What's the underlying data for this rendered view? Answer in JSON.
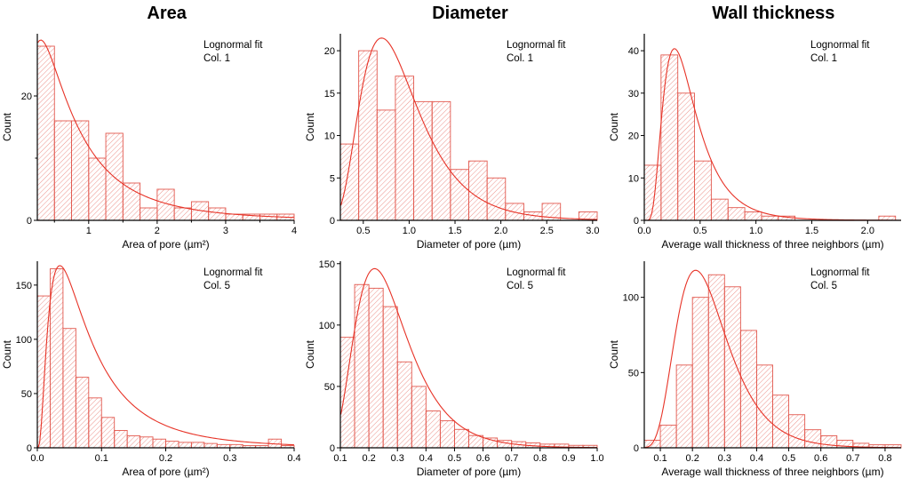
{
  "column_titles": [
    "Area",
    "Diameter",
    "Wall thickness"
  ],
  "colors": {
    "bar": "#e2584e",
    "hatch": "#e2584e",
    "curve": "#e73327",
    "axis": "#000000"
  },
  "chart_data": [
    {
      "type": "bar",
      "name": "area-col1",
      "legend": [
        "Lognormal fit",
        "Col. 1"
      ],
      "xlabel": "Area of pore (µm²)",
      "ylabel": "Count",
      "bins": {
        "start": 0.25,
        "width": 0.25
      },
      "values": [
        28,
        16,
        16,
        10,
        14,
        6,
        2,
        5,
        2,
        3,
        2,
        1,
        1,
        1,
        1
      ],
      "xlim": [
        0.25,
        4.0
      ],
      "ylim": [
        0,
        30
      ],
      "xticks": {
        "values": [
          1,
          2,
          3,
          4
        ],
        "labels": [
          "1",
          "2",
          "3",
          "4"
        ]
      },
      "yticks": {
        "values": [
          0,
          20
        ],
        "labels": [
          "0",
          "20"
        ]
      },
      "xminor": [
        0.5,
        1.5,
        2.5,
        3.5
      ],
      "yminor": [
        10
      ],
      "fit": {
        "mode": 0.3,
        "sigma": 0.9,
        "peak": 29
      }
    },
    {
      "type": "bar",
      "name": "diameter-col1",
      "legend": [
        "Lognormal fit",
        "Col. 1"
      ],
      "xlabel": "Diameter of pore (µm)",
      "ylabel": "Count",
      "bins": {
        "start": 0.25,
        "width": 0.2
      },
      "values": [
        9,
        20,
        13,
        17,
        14,
        14,
        6,
        7,
        5,
        2,
        1,
        2,
        0,
        1
      ],
      "xlim": [
        0.25,
        3.05
      ],
      "ylim": [
        0,
        22
      ],
      "xticks": {
        "values": [
          0.5,
          1.0,
          1.5,
          2.0,
          2.5,
          3.0
        ],
        "labels": [
          "0.5",
          "1.0",
          "1.5",
          "2.0",
          "2.5",
          "3.0"
        ]
      },
      "yticks": {
        "values": [
          0,
          5,
          10,
          15,
          20
        ],
        "labels": [
          "0",
          "5",
          "10",
          "15",
          "20"
        ]
      },
      "xminor": [],
      "yminor": [],
      "fit": {
        "mode": 0.7,
        "sigma": 0.45,
        "peak": 21.5
      }
    },
    {
      "type": "bar",
      "name": "wall-col1",
      "legend": [
        "Lognormal fit",
        "Col. 1"
      ],
      "xlabel": "Average wall thickness of three neighbors (µm)",
      "ylabel": "Count",
      "bins": {
        "start": 0.0,
        "width": 0.15
      },
      "values": [
        13,
        39,
        30,
        14,
        5,
        3,
        2,
        1,
        1,
        0,
        0,
        0,
        0,
        0,
        1
      ],
      "xlim": [
        0,
        2.3
      ],
      "ylim": [
        0,
        44
      ],
      "xticks": {
        "values": [
          0.0,
          0.5,
          1.0,
          1.5,
          2.0
        ],
        "labels": [
          "0.0",
          "0.5",
          "1.0",
          "1.5",
          "2.0"
        ]
      },
      "yticks": {
        "values": [
          0,
          10,
          20,
          30,
          40
        ],
        "labels": [
          "0",
          "10",
          "20",
          "30",
          "40"
        ]
      },
      "xminor": [],
      "yminor": [],
      "fit": {
        "mode": 0.27,
        "sigma": 0.55,
        "peak": 40.5
      }
    },
    {
      "type": "bar",
      "name": "area-col5",
      "legend": [
        "Lognormal fit",
        "Col. 5"
      ],
      "xlabel": "Area of pore (µm²)",
      "ylabel": "Count",
      "bins": {
        "start": 0.0,
        "width": 0.02
      },
      "values": [
        140,
        165,
        110,
        65,
        46,
        28,
        16,
        11,
        10,
        8,
        6,
        5,
        5,
        4,
        3,
        3,
        2,
        2,
        8,
        2
      ],
      "xlim": [
        0,
        0.4
      ],
      "ylim": [
        0,
        172
      ],
      "xticks": {
        "values": [
          0.0,
          0.1,
          0.2,
          0.3,
          0.4
        ],
        "labels": [
          "0.0",
          "0.1",
          "0.2",
          "0.3",
          "0.4"
        ]
      },
      "yticks": {
        "values": [
          0,
          50,
          100,
          150
        ],
        "labels": [
          "0",
          "50",
          "100",
          "150"
        ]
      },
      "xminor": [],
      "yminor": [],
      "fit": {
        "mode": 0.035,
        "sigma": 0.85,
        "peak": 168
      }
    },
    {
      "type": "bar",
      "name": "diameter-col5",
      "legend": [
        "Lognormal fit",
        "Col. 5"
      ],
      "xlabel": "Diameter of pore (µm)",
      "ylabel": "Count",
      "bins": {
        "start": 0.1,
        "width": 0.05
      },
      "values": [
        90,
        133,
        130,
        115,
        70,
        50,
        30,
        22,
        15,
        10,
        8,
        6,
        5,
        4,
        3,
        3,
        2,
        2
      ],
      "xlim": [
        0.1,
        1.0
      ],
      "ylim": [
        0,
        152
      ],
      "xticks": {
        "values": [
          0.1,
          0.2,
          0.3,
          0.4,
          0.5,
          0.6,
          0.7,
          0.8,
          0.9,
          1.0
        ],
        "labels": [
          "0.1",
          "0.2",
          "0.3",
          "0.4",
          "0.5",
          "0.6",
          "0.7",
          "0.8",
          "0.9",
          "1.0"
        ]
      },
      "yticks": {
        "values": [
          0,
          50,
          100,
          150
        ],
        "labels": [
          "0",
          "50",
          "100",
          "150"
        ]
      },
      "xminor": [],
      "yminor": [],
      "fit": {
        "mode": 0.22,
        "sigma": 0.42,
        "peak": 146
      }
    },
    {
      "type": "bar",
      "name": "wall-col5",
      "legend": [
        "Lognormal fit",
        "Col. 5"
      ],
      "xlabel": "Average wall thickness of three neighbors (µm)",
      "ylabel": "Count",
      "bins": {
        "start": 0.05,
        "width": 0.05
      },
      "values": [
        5,
        15,
        55,
        100,
        115,
        107,
        78,
        55,
        35,
        22,
        12,
        8,
        5,
        3,
        2,
        2
      ],
      "xlim": [
        0.05,
        0.85
      ],
      "ylim": [
        0,
        124
      ],
      "xticks": {
        "values": [
          0.1,
          0.2,
          0.3,
          0.4,
          0.5,
          0.6,
          0.7,
          0.8
        ],
        "labels": [
          "0.1",
          "0.2",
          "0.3",
          "0.4",
          "0.5",
          "0.6",
          "0.7",
          "0.8"
        ]
      },
      "yticks": {
        "values": [
          0,
          50,
          100
        ],
        "labels": [
          "0",
          "50",
          "100"
        ]
      },
      "xminor": [],
      "yminor": [],
      "fit": {
        "mode": 0.21,
        "sigma": 0.38,
        "peak": 118
      }
    }
  ]
}
